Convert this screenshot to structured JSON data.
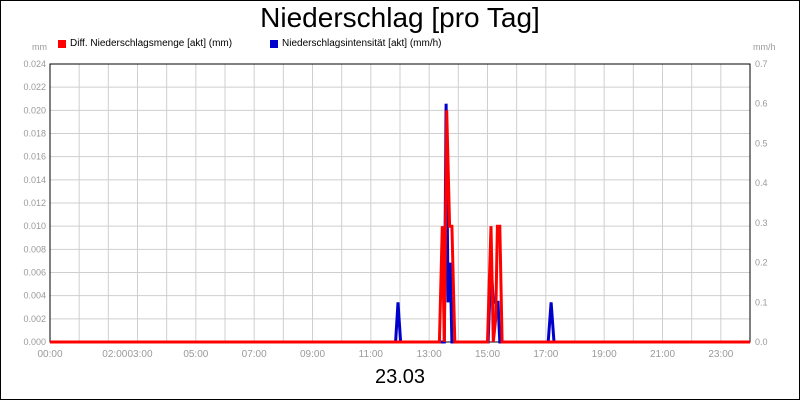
{
  "chart_data": {
    "type": "line",
    "title": "Niederschlag [pro Tag]",
    "xlabel": "23.03",
    "y_left": {
      "unit": "mm",
      "range": [
        0,
        0.024
      ],
      "ticks": [
        "0.000",
        "0.002",
        "0.004",
        "0.006",
        "0.008",
        "0.010",
        "0.012",
        "0.014",
        "0.016",
        "0.018",
        "0.020",
        "0.022",
        "0.024"
      ]
    },
    "y_right": {
      "unit": "mm/h",
      "range": [
        0,
        0.7
      ],
      "ticks": [
        "0.0",
        "0.1",
        "0.2",
        "0.3",
        "0.4",
        "0.5",
        "0.6",
        "0.7"
      ]
    },
    "x_range_hours": [
      0,
      24
    ],
    "x_ticks": [
      {
        "h": 0,
        "label": "00:00"
      },
      {
        "h": 2,
        "label": "02:00"
      },
      {
        "h": 3,
        "label": "03:00"
      },
      {
        "h": 5,
        "label": "05:00"
      },
      {
        "h": 7,
        "label": "07:00"
      },
      {
        "h": 9,
        "label": "09:00"
      },
      {
        "h": 11,
        "label": "11:00"
      },
      {
        "h": 13,
        "label": "13:00"
      },
      {
        "h": 15,
        "label": "15:00"
      },
      {
        "h": 17,
        "label": "17:00"
      },
      {
        "h": 19,
        "label": "19:00"
      },
      {
        "h": 21,
        "label": "21:00"
      },
      {
        "h": 23,
        "label": "23:00"
      }
    ],
    "grid": true,
    "legend_position": "top-left",
    "series": [
      {
        "name": "Niederschlagsintensität [akt] (mm/h)",
        "axis": "right",
        "color": "#0000cc",
        "x": [
          0,
          11.85,
          11.93,
          12.02,
          13.52,
          13.58,
          13.65,
          13.72,
          13.78,
          13.85,
          15.02,
          15.12,
          15.2,
          15.28,
          15.36,
          15.42,
          15.5,
          17.08,
          17.18,
          17.28,
          24
        ],
        "y": [
          0,
          0,
          0.1,
          0,
          0,
          0.6,
          0.1,
          0.2,
          0,
          0,
          0,
          0.2,
          0.1,
          0.1,
          0.1,
          0,
          0,
          0,
          0.1,
          0,
          0
        ]
      },
      {
        "name": "Diff. Niederschlagsmenge [akt] (mm)",
        "axis": "left",
        "color": "#ff0000",
        "x": [
          0,
          13.35,
          13.45,
          13.52,
          13.6,
          13.7,
          13.78,
          13.88,
          15.0,
          15.12,
          15.2,
          15.28,
          15.34,
          15.42,
          15.5,
          15.55,
          24
        ],
        "y": [
          0,
          0,
          0.01,
          0,
          0.02,
          0.01,
          0.01,
          0,
          0,
          0.01,
          0,
          0.002,
          0.01,
          0.01,
          0,
          0,
          0
        ]
      }
    ]
  },
  "legend_order": [
    1,
    0
  ]
}
